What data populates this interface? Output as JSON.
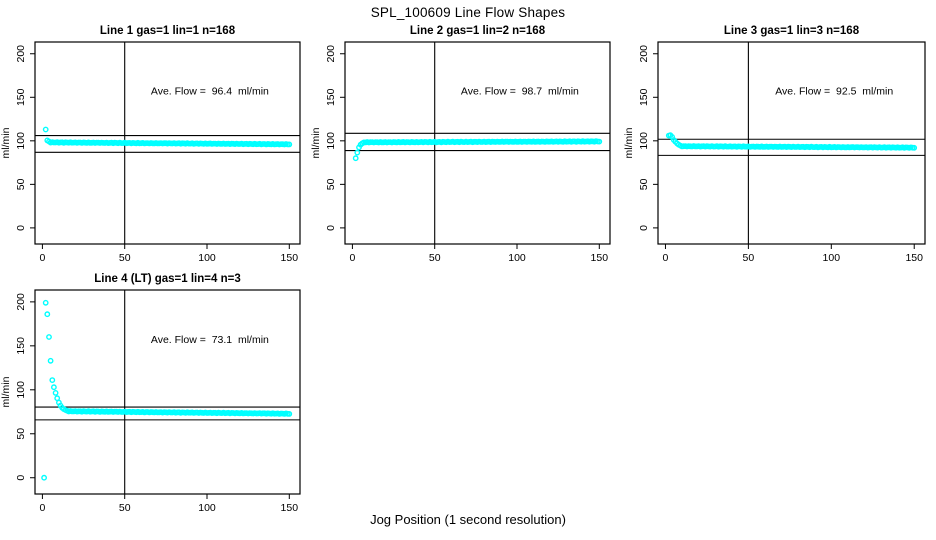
{
  "figure": {
    "title": "SPL_100609  Line Flow Shapes",
    "xlabel": "Jog Position (1 second resolution)",
    "background_color": "#ffffff",
    "point_color": "#00ffff",
    "line_color": "#000000",
    "marker": "open-circle"
  },
  "chart_data": {
    "type": "scatter",
    "title": "SPL_100609  Line Flow Shapes",
    "xlabel": "Jog Position (1 second resolution)",
    "ylabel": "ml/min",
    "x_ticks": [
      0,
      50,
      100,
      150
    ],
    "y_ticks": [
      0,
      50,
      100,
      150,
      200
    ],
    "xlim": [
      -4.5,
      156.5
    ],
    "ylim": [
      -18.5,
      213.5
    ],
    "grid": false,
    "legend": false,
    "panels": [
      {
        "title": "Line 1 gas=1 lin=1 n=168",
        "annotation": "Ave. Flow =  96.4  ml/min",
        "ave_flow": 96.4,
        "n": 168,
        "ref_vline_x": 50,
        "ref_hlines": [
          106.0,
          86.8
        ],
        "transient_points": [
          [
            2,
            113
          ],
          [
            3,
            100.5
          ],
          [
            4,
            99.2
          ]
        ],
        "steady_segment": {
          "x_from": 5,
          "x_to": 150,
          "y_start": 98.2,
          "y_end": 96.0
        }
      },
      {
        "title": "Line 2 gas=1 lin=2 n=168",
        "annotation": "Ave. Flow =  98.7  ml/min",
        "ave_flow": 98.7,
        "n": 168,
        "ref_vline_x": 50,
        "ref_hlines": [
          108.6,
          88.8
        ],
        "transient_points": [
          [
            2,
            80
          ],
          [
            3,
            86.5
          ],
          [
            4,
            92.5
          ],
          [
            5,
            95.5
          ],
          [
            6,
            97.2
          ]
        ],
        "steady_segment": {
          "x_from": 7,
          "x_to": 150,
          "y_start": 98.3,
          "y_end": 99.3
        }
      },
      {
        "title": "Line 3 gas=1 lin=3 n=168",
        "annotation": "Ave. Flow =  92.5  ml/min",
        "ave_flow": 92.5,
        "n": 168,
        "ref_vline_x": 50,
        "ref_hlines": [
          101.8,
          83.3
        ],
        "transient_points": [
          [
            2,
            106
          ],
          [
            3,
            106.5
          ],
          [
            4,
            104.5
          ],
          [
            5,
            101
          ],
          [
            6,
            99
          ],
          [
            7,
            97
          ],
          [
            8,
            95.5
          ],
          [
            9,
            94.5
          ]
        ],
        "steady_segment": {
          "x_from": 10,
          "x_to": 150,
          "y_start": 93.8,
          "y_end": 92.2
        }
      },
      {
        "title": "Line 4 (LT) gas=1 lin=4 n=3",
        "annotation": "Ave. Flow =  73.1  ml/min",
        "ave_flow": 73.1,
        "n": 3,
        "ref_vline_x": 50,
        "ref_hlines": [
          80.4,
          65.8
        ],
        "transient_points": [
          [
            1,
            0
          ],
          [
            2,
            199
          ],
          [
            3,
            186
          ],
          [
            4,
            160
          ],
          [
            5,
            133
          ],
          [
            6,
            111
          ],
          [
            7,
            103
          ],
          [
            8,
            96.5
          ],
          [
            9,
            90.5
          ],
          [
            10,
            85.5
          ],
          [
            11,
            82
          ],
          [
            12,
            79.5
          ],
          [
            13,
            78
          ],
          [
            14,
            77
          ],
          [
            15,
            76.2
          ]
        ],
        "steady_segment": {
          "x_from": 16,
          "x_to": 150,
          "y_start": 75.6,
          "y_end": 72.8
        }
      }
    ]
  }
}
